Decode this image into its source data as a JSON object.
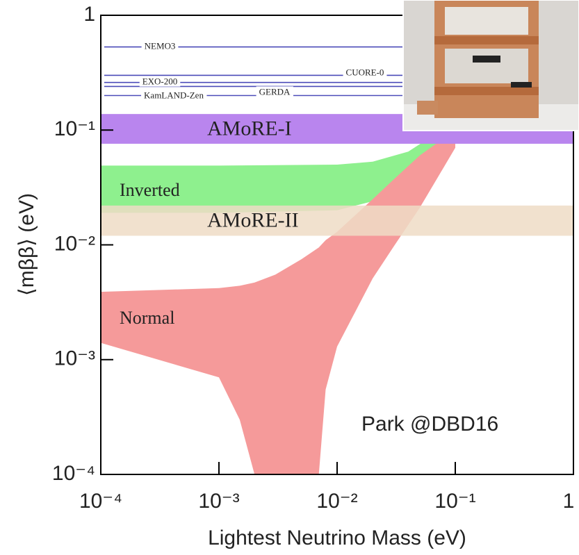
{
  "chart_data": {
    "type": "band",
    "xlabel": "Lightest Neutrino Mass (eV)",
    "ylabel": "⟨mββ⟩ (eV)",
    "log_x": true,
    "log_y": true,
    "xlim": [
      0.0001,
      1
    ],
    "ylim": [
      0.0001,
      1
    ],
    "xticks": [
      {
        "value": 0.0001,
        "label": "10⁻⁴"
      },
      {
        "value": 0.001,
        "label": "10⁻³"
      },
      {
        "value": 0.01,
        "label": "10⁻²"
      },
      {
        "value": 0.1,
        "label": "10⁻¹"
      },
      1
    ],
    "yticks": [
      {
        "value": 0.0001,
        "label": "10⁻⁴"
      },
      {
        "value": 0.001,
        "label": "10⁻³"
      },
      {
        "value": 0.01,
        "label": "10⁻²"
      },
      {
        "value": 0.1,
        "label": "10⁻¹"
      },
      1
    ],
    "bands": [
      {
        "name": "Inverted",
        "color": "#8ef08e",
        "x": [
          0.0001,
          0.001,
          0.01,
          0.02,
          0.04,
          0.06,
          0.08
        ],
        "upper": [
          0.049,
          0.049,
          0.05,
          0.053,
          0.065,
          0.085,
          0.11
        ],
        "lower": [
          0.019,
          0.019,
          0.02,
          0.024,
          0.04,
          0.06,
          0.085
        ]
      },
      {
        "name": "Normal",
        "color": "#f59a9a",
        "x": [
          0.0001,
          0.001,
          0.0015,
          0.002,
          0.003,
          0.005,
          0.007,
          0.008,
          0.01,
          0.02,
          0.03,
          0.05,
          0.1
        ],
        "upper": [
          0.0039,
          0.0042,
          0.0044,
          0.0047,
          0.0055,
          0.0075,
          0.0095,
          0.011,
          0.013,
          0.025,
          0.037,
          0.06,
          0.1
        ],
        "lower": [
          0.0014,
          0.0007,
          0.0003,
          0.0001,
          null,
          null,
          0.0001,
          0.00055,
          0.0013,
          0.0051,
          0.0096,
          0.021,
          0.07
        ]
      }
    ],
    "sensitivities": [
      {
        "name": "AMoRE-I",
        "color": "#b985ee",
        "range": [
          0.076,
          0.138
        ]
      },
      {
        "name": "AMoRE-II",
        "color": "#eedcc6",
        "range": [
          0.012,
          0.022
        ]
      }
    ],
    "experiments": [
      {
        "name": "NEMO3",
        "value": 0.53,
        "color": "#4a4ab8"
      },
      {
        "name": "CUORE-0",
        "value": 0.3,
        "color": "#4a4ab8"
      },
      {
        "name": "EXO-200",
        "value": 0.26,
        "color": "#4a4ab8"
      },
      {
        "name": "GERDA",
        "value": 0.24,
        "color": "#4a4ab8"
      },
      {
        "name": "KamLAND-Zen",
        "value": 0.2,
        "color": "#4a4ab8"
      }
    ],
    "annotation": "Park @DBD16"
  }
}
